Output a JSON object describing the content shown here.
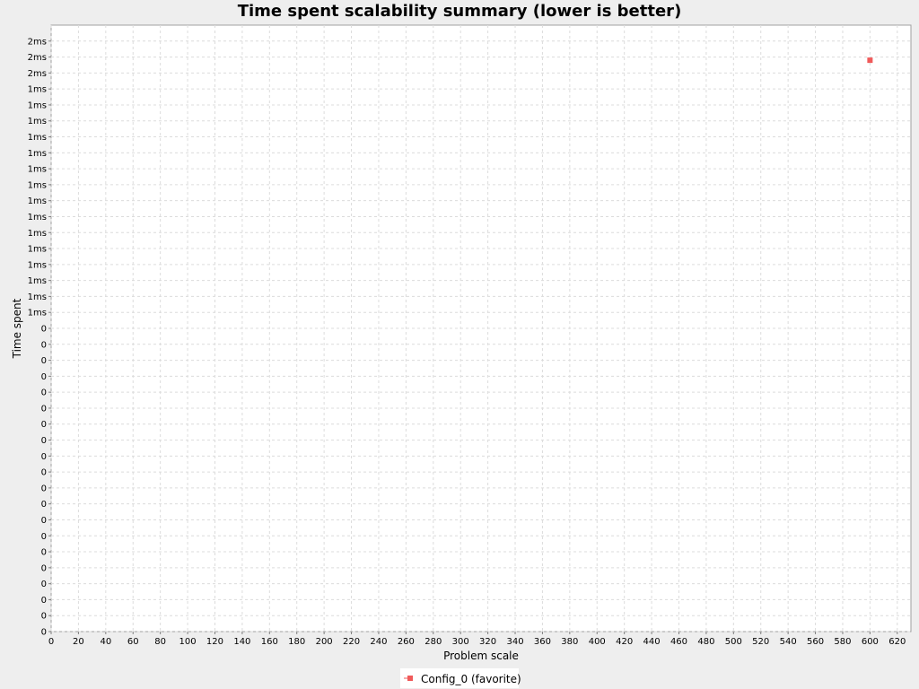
{
  "chart_data": {
    "type": "scatter",
    "title": "Time spent scalability summary (lower is better)",
    "xlabel": "Problem scale",
    "ylabel": "Time spent",
    "xlim": [
      0,
      630
    ],
    "ylim": [
      0,
      1.9
    ],
    "x_ticks": [
      0,
      20,
      40,
      60,
      80,
      100,
      120,
      140,
      160,
      180,
      200,
      220,
      240,
      260,
      280,
      300,
      320,
      340,
      360,
      380,
      400,
      420,
      440,
      460,
      480,
      500,
      520,
      540,
      560,
      580,
      600,
      620
    ],
    "x_tick_labels": [
      "0",
      "20",
      "40",
      "60",
      "80",
      "100",
      "120",
      "140",
      "160",
      "180",
      "200",
      "220",
      "240",
      "260",
      "280",
      "300",
      "320",
      "340",
      "360",
      "380",
      "400",
      "420",
      "440",
      "460",
      "480",
      "500",
      "520",
      "540",
      "560",
      "580",
      "600",
      "620"
    ],
    "y_ticks": [
      0,
      0.05,
      0.1,
      0.15,
      0.2,
      0.25,
      0.3,
      0.35,
      0.4,
      0.45,
      0.5,
      0.55,
      0.6,
      0.65,
      0.7,
      0.75,
      0.8,
      0.85,
      0.9,
      0.95,
      1.0,
      1.05,
      1.1,
      1.15,
      1.2,
      1.25,
      1.3,
      1.35,
      1.4,
      1.45,
      1.5,
      1.55,
      1.6,
      1.65,
      1.7,
      1.75,
      1.8,
      1.85
    ],
    "y_tick_labels": [
      "0",
      "0",
      "0",
      "0",
      "0",
      "0",
      "0",
      "0",
      "0",
      "0",
      "0",
      "0",
      "0",
      "0",
      "0",
      "0",
      "0",
      "0",
      "0",
      "0",
      "1ms",
      "1ms",
      "1ms",
      "1ms",
      "1ms",
      "1ms",
      "1ms",
      "1ms",
      "1ms",
      "1ms",
      "1ms",
      "1ms",
      "1ms",
      "1ms",
      "1ms",
      "2ms",
      "2ms",
      "2ms"
    ],
    "grid": true,
    "legend_position": "bottom",
    "series": [
      {
        "name": "Config_0 (favorite)",
        "color": "#f05a5a",
        "marker": "square",
        "points": [
          {
            "x": 600,
            "y": 1.79
          }
        ]
      }
    ]
  }
}
